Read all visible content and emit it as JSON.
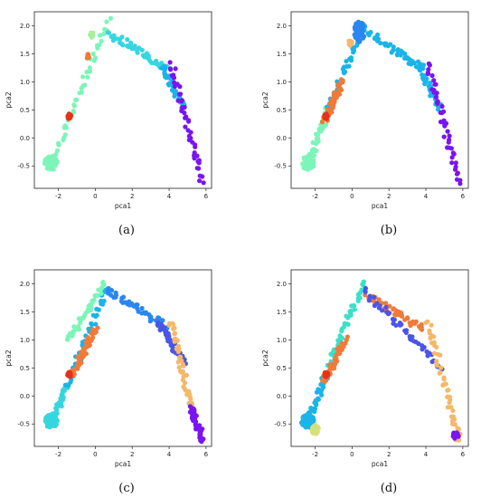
{
  "figure": {
    "panels": [
      {
        "caption": "(a)"
      },
      {
        "caption": "(b)"
      },
      {
        "caption": "(c)"
      },
      {
        "caption": "(d)"
      }
    ]
  },
  "palette": {
    "cyan": "#36d6e0",
    "mint": "#7cf5b8",
    "lightgreen": "#a7f0a0",
    "blue": "#2a86f0",
    "skyblue": "#1ab4e8",
    "purple": "#7a14f0",
    "darkpurple": "#5a10c8",
    "indigo": "#4a55e8",
    "red": "#e8301a",
    "orange": "#f07a3a",
    "tan": "#f4b86a",
    "yellow": "#d6e07a",
    "teal": "#3ae0c8"
  },
  "chart_data": [
    {
      "type": "scatter",
      "xlabel": "pca1",
      "ylabel": "pca2",
      "xlim": [
        -3.3,
        6.3
      ],
      "ylim": [
        -0.9,
        2.25
      ],
      "xticks": [
        -2,
        0,
        2,
        4,
        6
      ],
      "yticks": [
        -0.5,
        0.0,
        0.5,
        1.0,
        1.5,
        2.0
      ],
      "grid": false,
      "legend": "none",
      "series": [
        {
          "color": "mint",
          "segments": [
            [
              -2.4,
              -0.5,
              0.7,
              2.1
            ]
          ],
          "cluster": [
            [
              -2.4,
              -0.45,
              0.35,
              0.12
            ]
          ]
        },
        {
          "color": "cyan",
          "segments": [
            [
              0.6,
              1.9,
              3.8,
              1.25
            ]
          ]
        },
        {
          "color": "skyblue",
          "segments": [
            [
              3.6,
              1.3,
              4.8,
              0.5
            ]
          ]
        },
        {
          "color": "purple",
          "segments": [
            [
              4.1,
              1.33,
              5.8,
              -0.78
            ]
          ]
        },
        {
          "color": "red",
          "cluster": [
            [
              -1.4,
              0.38,
              0.1,
              0.05
            ]
          ]
        },
        {
          "color": "orange",
          "cluster": [
            [
              -0.4,
              1.45,
              0.05,
              0.05
            ]
          ]
        },
        {
          "color": "lightgreen",
          "cluster": [
            [
              -0.2,
              1.85,
              0.1,
              0.06
            ]
          ]
        }
      ]
    },
    {
      "type": "scatter",
      "xlabel": "pca1",
      "ylabel": "pca2",
      "xlim": [
        -3.3,
        6.3
      ],
      "ylim": [
        -0.9,
        2.25
      ],
      "xticks": [
        -2,
        0,
        2,
        4,
        6
      ],
      "yticks": [
        -0.5,
        0.0,
        0.5,
        1.0,
        1.5,
        2.0
      ],
      "grid": false,
      "legend": "none",
      "series": [
        {
          "color": "mint",
          "segments": [
            [
              -2.4,
              -0.5,
              -1.3,
              0.5
            ]
          ],
          "cluster": [
            [
              -2.4,
              -0.45,
              0.35,
              0.12
            ]
          ]
        },
        {
          "color": "skyblue",
          "segments": [
            [
              -1.3,
              0.5,
              0.6,
              2.0
            ],
            [
              0.8,
              1.9,
              3.8,
              1.25
            ],
            [
              3.6,
              1.3,
              4.8,
              0.5
            ]
          ]
        },
        {
          "color": "blue",
          "cluster": [
            [
              0.4,
              1.9,
              0.3,
              0.2
            ]
          ]
        },
        {
          "color": "orange",
          "segments": [
            [
              -1.5,
              0.3,
              -0.5,
              1.0
            ]
          ]
        },
        {
          "color": "red",
          "cluster": [
            [
              -1.4,
              0.38,
              0.1,
              0.05
            ]
          ]
        },
        {
          "color": "purple",
          "segments": [
            [
              4.1,
              1.33,
              5.8,
              -0.78
            ]
          ]
        },
        {
          "color": "tan",
          "cluster": [
            [
              -0.1,
              1.7,
              0.1,
              0.05
            ]
          ]
        }
      ]
    },
    {
      "type": "scatter",
      "xlabel": "pca1",
      "ylabel": "pca2",
      "xlim": [
        -3.3,
        6.3
      ],
      "ylim": [
        -0.9,
        2.25
      ],
      "xticks": [
        -2,
        0,
        2,
        4,
        6
      ],
      "yticks": [
        -0.5,
        0.0,
        0.5,
        1.0,
        1.5,
        2.0
      ],
      "grid": false,
      "legend": "none",
      "series": [
        {
          "color": "cyan",
          "segments": [
            [
              -2.4,
              -0.5,
              -1.5,
              0.2
            ]
          ],
          "cluster": [
            [
              -2.4,
              -0.45,
              0.35,
              0.12
            ]
          ]
        },
        {
          "color": "skyblue",
          "segments": [
            [
              -1.5,
              0.2,
              0.6,
              1.9
            ]
          ]
        },
        {
          "color": "mint",
          "segments": [
            [
              -1.5,
              1.0,
              0.5,
              2.0
            ]
          ]
        },
        {
          "color": "blue",
          "segments": [
            [
              0.6,
              1.9,
              3.8,
              1.25
            ]
          ]
        },
        {
          "color": "indigo",
          "segments": [
            [
              3.4,
              1.3,
              4.8,
              0.6
            ]
          ]
        },
        {
          "color": "tan",
          "segments": [
            [
              4.1,
              1.33,
              5.2,
              -0.2
            ]
          ]
        },
        {
          "color": "purple",
          "segments": [
            [
              5.2,
              -0.2,
              5.8,
              -0.78
            ]
          ]
        },
        {
          "color": "orange",
          "segments": [
            [
              -1.2,
              0.4,
              0.0,
              1.2
            ]
          ]
        },
        {
          "color": "red",
          "cluster": [
            [
              -1.4,
              0.38,
              0.1,
              0.05
            ]
          ]
        }
      ]
    },
    {
      "type": "scatter",
      "xlabel": "pca1",
      "ylabel": "pca2",
      "xlim": [
        -3.3,
        6.3
      ],
      "ylim": [
        -0.9,
        2.25
      ],
      "xticks": [
        -2,
        0,
        2,
        4,
        6
      ],
      "yticks": [
        -0.5,
        0.0,
        0.5,
        1.0,
        1.5,
        2.0
      ],
      "grid": false,
      "legend": "none",
      "series": [
        {
          "color": "skyblue",
          "segments": [
            [
              -2.4,
              -0.5,
              -1.3,
              0.5
            ]
          ],
          "cluster": [
            [
              -2.4,
              -0.45,
              0.35,
              0.12
            ]
          ]
        },
        {
          "color": "teal",
          "segments": [
            [
              -1.3,
              0.5,
              0.6,
              2.0
            ]
          ]
        },
        {
          "color": "orange",
          "segments": [
            [
              0.8,
              1.8,
              3.8,
              1.2
            ],
            [
              -1.5,
              0.3,
              -0.3,
              1.0
            ]
          ]
        },
        {
          "color": "indigo",
          "segments": [
            [
              0.6,
              1.9,
              4.8,
              0.5
            ]
          ]
        },
        {
          "color": "tan",
          "segments": [
            [
              4.1,
              1.33,
              5.8,
              -0.78
            ]
          ]
        },
        {
          "color": "purple",
          "cluster": [
            [
              5.6,
              -0.7,
              0.2,
              0.06
            ]
          ]
        },
        {
          "color": "red",
          "cluster": [
            [
              -1.4,
              0.38,
              0.1,
              0.05
            ]
          ]
        },
        {
          "color": "yellow",
          "cluster": [
            [
              -2.0,
              -0.6,
              0.2,
              0.08
            ]
          ]
        }
      ]
    }
  ]
}
